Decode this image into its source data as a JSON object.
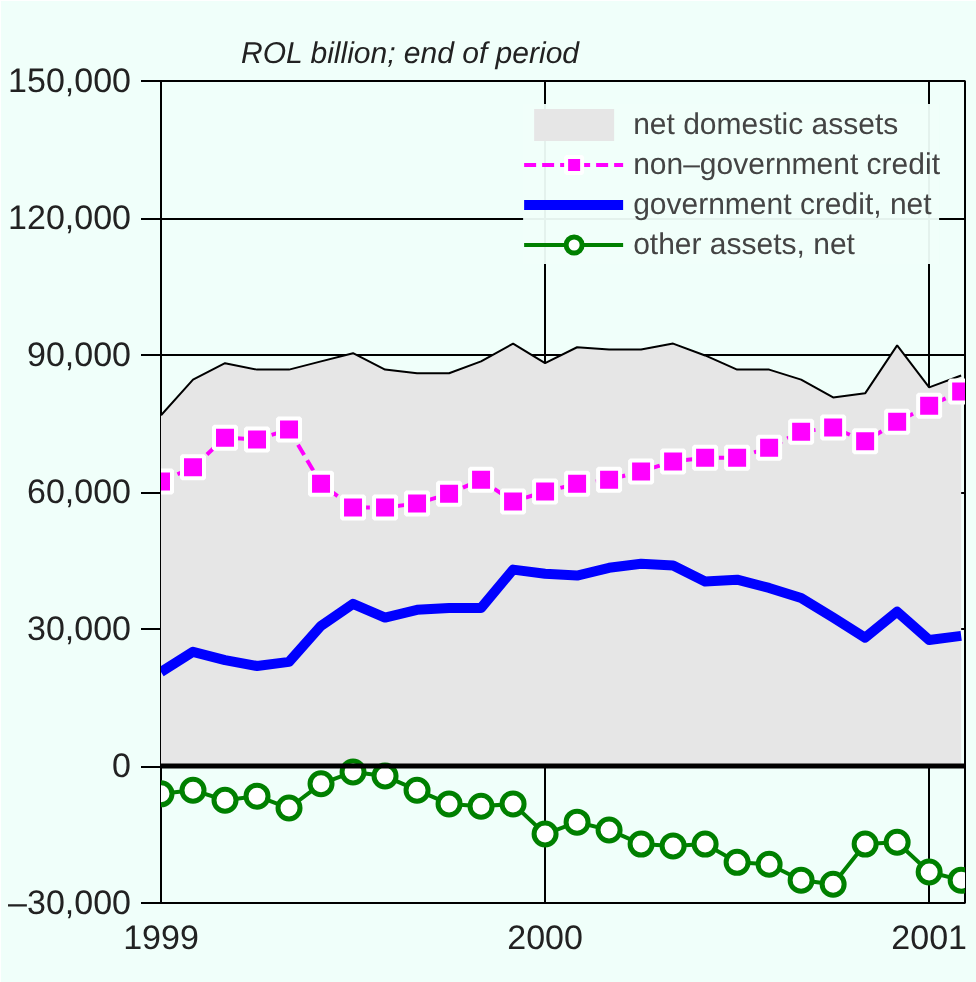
{
  "chart_data": {
    "type": "line",
    "title": "ROL billion; end of period",
    "x": [
      "1999-01",
      "1999-02",
      "1999-03",
      "1999-04",
      "1999-05",
      "1999-06",
      "1999-07",
      "1999-08",
      "1999-09",
      "1999-10",
      "1999-11",
      "1999-12",
      "2000-01",
      "2000-02",
      "2000-03",
      "2000-04",
      "2000-05",
      "2000-06",
      "2000-07",
      "2000-08",
      "2000-09",
      "2000-10",
      "2000-11",
      "2000-12",
      "2001-01",
      "2001-02"
    ],
    "series": [
      {
        "name": "net domestic assets",
        "type": "area",
        "color": "#e6e6e6",
        "values": [
          76800,
          84600,
          88200,
          86800,
          86800,
          88600,
          90400,
          86800,
          86000,
          86000,
          88600,
          92500,
          88200,
          91700,
          91200,
          91200,
          92500,
          89900,
          86800,
          86800,
          84600,
          80700,
          81600,
          92100,
          82900,
          85500
        ]
      },
      {
        "name": "non–government credit",
        "color": "#ff00ff",
        "marker": "square",
        "line_style": "dashed",
        "values": [
          62300,
          65400,
          71900,
          71500,
          73700,
          61800,
          56600,
          56600,
          57500,
          59600,
          62700,
          57900,
          60100,
          61800,
          62700,
          64500,
          66700,
          67500,
          67500,
          69700,
          73200,
          74100,
          71100,
          75400,
          78900,
          82000
        ]
      },
      {
        "name": "government credit, net",
        "color": "#0000ff",
        "values": [
          20600,
          25000,
          23200,
          21900,
          22800,
          30700,
          35500,
          32500,
          34200,
          34600,
          34600,
          43000,
          42100,
          41700,
          43400,
          44300,
          43900,
          40400,
          40800,
          39000,
          36800,
          32500,
          28100,
          33800,
          27600,
          28500
        ]
      },
      {
        "name": "other assets, net",
        "color": "#008000",
        "marker": "circle",
        "values": [
          -6100,
          -5300,
          -7500,
          -6600,
          -9200,
          -3900,
          -1300,
          -2200,
          -5300,
          -8300,
          -8800,
          -8300,
          -14900,
          -12300,
          -14000,
          -17100,
          -17500,
          -17100,
          -21100,
          -21500,
          -25000,
          -25900,
          -17100,
          -16700,
          -23200,
          -25000
        ]
      }
    ],
    "xlim": [
      "1999-01",
      "2001-02"
    ],
    "xticks": [
      "1999",
      "2000",
      "2001"
    ],
    "ylim": [
      -30000,
      150000
    ],
    "yticks": [
      {
        "value": -30000,
        "label": "–30,000"
      },
      {
        "value": 0,
        "label": "0"
      },
      {
        "value": 30000,
        "label": "30,000"
      },
      {
        "value": 60000,
        "label": "60,000"
      },
      {
        "value": 90000,
        "label": "90,000"
      },
      {
        "value": 120000,
        "label": "120,000"
      },
      {
        "value": 150000,
        "label": "150,000"
      }
    ],
    "ref_lines": [
      {
        "axis": "y",
        "value": 0,
        "color": "#000000"
      }
    ],
    "grid": true,
    "legend": "top right"
  }
}
